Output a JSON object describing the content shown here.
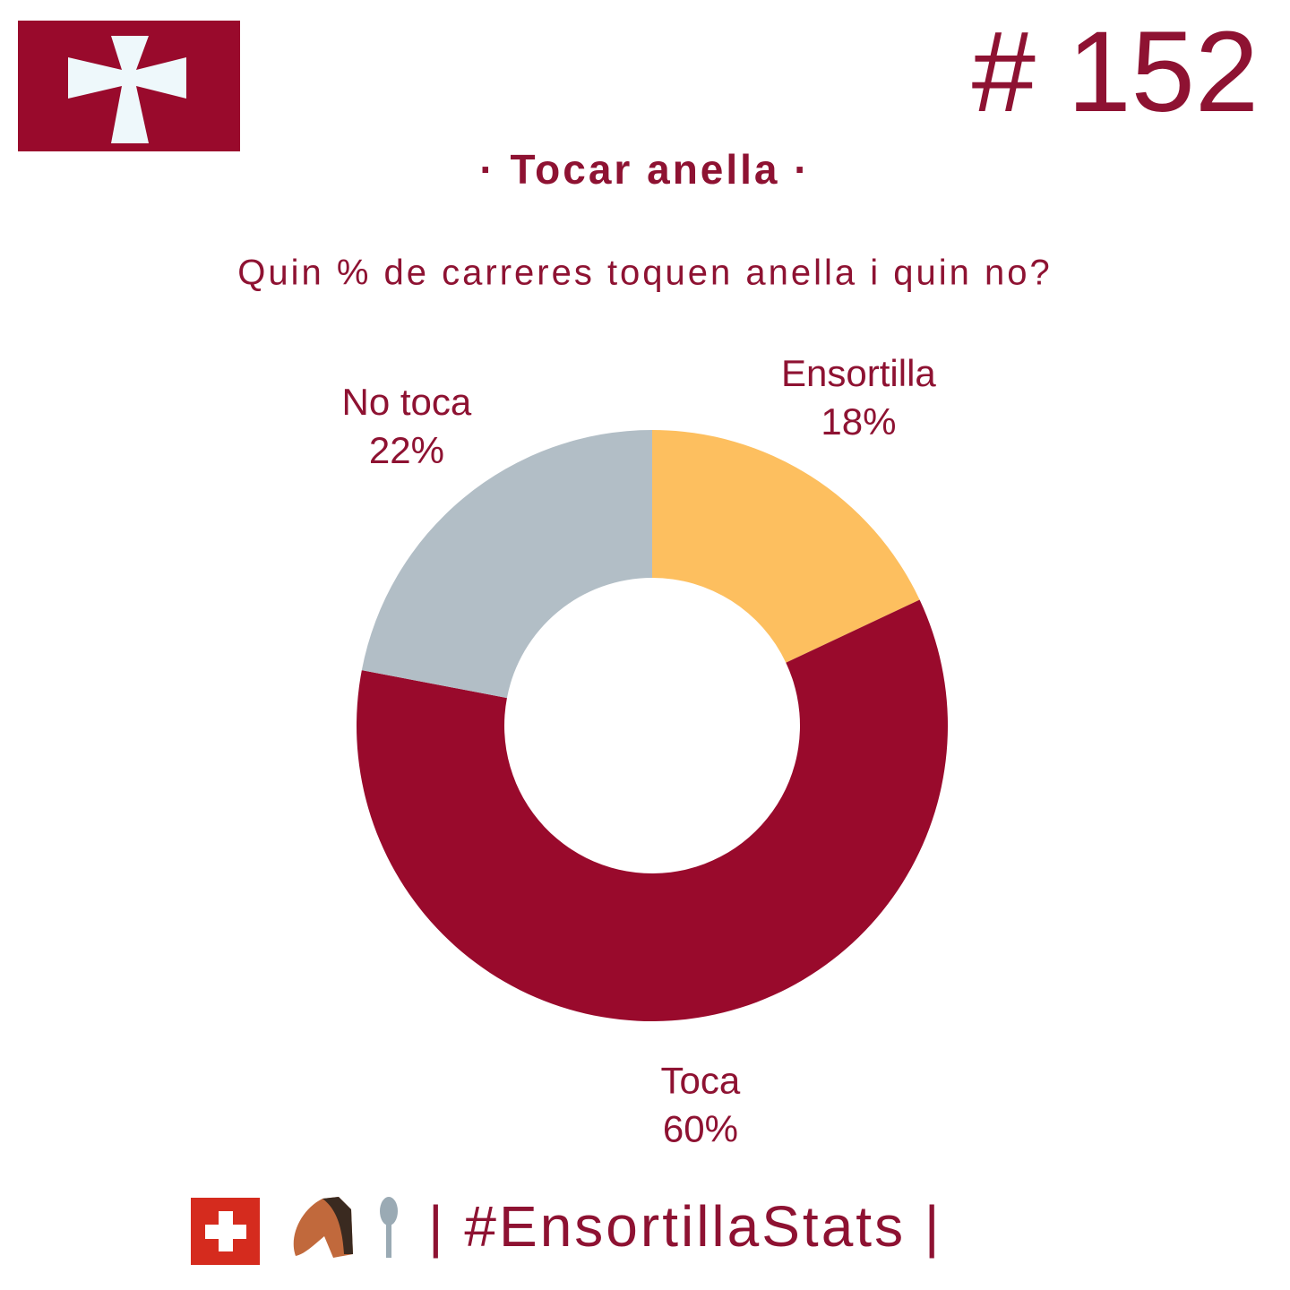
{
  "header": {
    "number": "# 152"
  },
  "chart_data": {
    "type": "donut",
    "title": "· Tocar anella ·",
    "subtitle": "Quin % de carreres toquen anella i quin no?",
    "categories": [
      "Ensortilla",
      "Toca",
      "No toca"
    ],
    "values": [
      18,
      60,
      22
    ],
    "value_labels": [
      "18%",
      "60%",
      "22%"
    ],
    "colors": [
      "#fdbf5f",
      "#990a2c",
      "#b2bec6"
    ]
  },
  "footer": {
    "text": "| #EnsortillaStats |"
  }
}
